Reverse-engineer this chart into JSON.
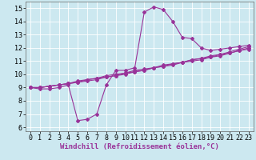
{
  "xlabel": "Windchill (Refroidissement éolien,°C)",
  "background_color": "#cce8f0",
  "grid_color": "#ffffff",
  "line_color": "#993399",
  "xlim": [
    -0.5,
    23.5
  ],
  "ylim": [
    5.7,
    15.5
  ],
  "xticks": [
    0,
    1,
    2,
    3,
    4,
    5,
    6,
    7,
    8,
    9,
    10,
    11,
    12,
    13,
    14,
    15,
    16,
    17,
    18,
    19,
    20,
    21,
    22,
    23
  ],
  "yticks": [
    6,
    7,
    8,
    9,
    10,
    11,
    12,
    13,
    14,
    15
  ],
  "series": [
    [
      9.0,
      8.9,
      8.9,
      9.0,
      9.2,
      6.5,
      6.6,
      7.0,
      9.2,
      10.3,
      10.3,
      10.5,
      14.7,
      15.1,
      14.9,
      14.0,
      12.8,
      12.7,
      12.0,
      11.8,
      11.9,
      12.0,
      12.1,
      12.2
    ],
    [
      9.0,
      9.0,
      9.1,
      9.2,
      9.3,
      9.4,
      9.5,
      9.6,
      9.8,
      9.9,
      10.0,
      10.2,
      10.3,
      10.5,
      10.6,
      10.8,
      10.9,
      11.1,
      11.2,
      11.4,
      11.5,
      11.7,
      11.9,
      12.1
    ],
    [
      9.0,
      9.0,
      9.1,
      9.2,
      9.3,
      9.4,
      9.6,
      9.7,
      9.8,
      9.9,
      10.1,
      10.2,
      10.3,
      10.5,
      10.6,
      10.7,
      10.9,
      11.0,
      11.1,
      11.3,
      11.4,
      11.6,
      11.8,
      12.0
    ],
    [
      9.0,
      9.0,
      9.1,
      9.2,
      9.3,
      9.5,
      9.6,
      9.7,
      9.9,
      10.0,
      10.1,
      10.3,
      10.4,
      10.5,
      10.7,
      10.8,
      10.9,
      11.1,
      11.2,
      11.3,
      11.5,
      11.6,
      11.8,
      11.9
    ]
  ],
  "marker": "D",
  "markersize": 2.0,
  "linewidth": 0.8,
  "xlabel_fontsize": 6.5,
  "tick_fontsize": 6.0
}
